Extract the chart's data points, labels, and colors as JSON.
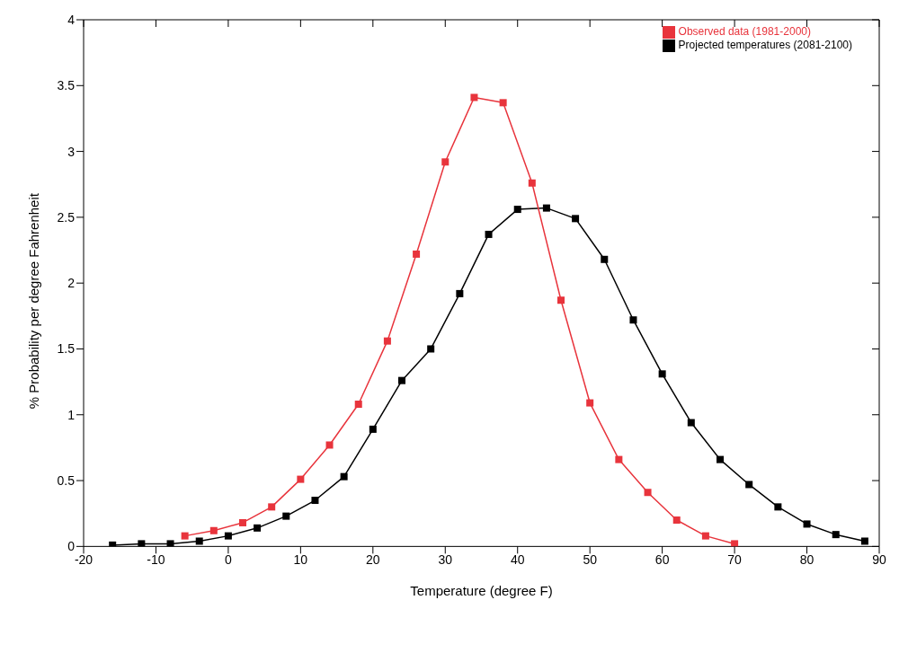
{
  "chart_data": {
    "type": "line",
    "xlabel": "Temperature (degree F)",
    "ylabel": "% Probability per degree Fahrenheit",
    "xlim": [
      -20,
      90
    ],
    "xticks": [
      -20,
      -10,
      0,
      10,
      20,
      30,
      40,
      50,
      60,
      70,
      80,
      90
    ],
    "ylim": [
      0,
      4
    ],
    "yticks": [
      0,
      0.5,
      1,
      1.5,
      2,
      2.5,
      3,
      3.5,
      4
    ],
    "grid": false,
    "legend": "top right",
    "marker": "square",
    "line_style": "solid",
    "series": [
      {
        "name": "Projected temperatures (2081-2100)",
        "color": "#000000",
        "x": [
          -16,
          -12,
          -8,
          -4,
          0,
          4,
          8,
          12,
          16,
          20,
          24,
          28,
          32,
          36,
          40,
          44,
          48,
          52,
          56,
          60,
          64,
          68,
          72,
          76,
          80,
          84,
          88
        ],
        "values": [
          0.01,
          0.02,
          0.02,
          0.04,
          0.08,
          0.14,
          0.23,
          0.35,
          0.53,
          0.89,
          1.26,
          1.5,
          1.92,
          2.37,
          2.56,
          2.57,
          2.49,
          2.18,
          1.72,
          1.31,
          0.94,
          0.66,
          0.47,
          0.3,
          0.17,
          0.09,
          0.04
        ]
      },
      {
        "name": "Observed data (1981-2000)",
        "color": "#e8343c",
        "x": [
          -6,
          -2,
          2,
          6,
          10,
          14,
          18,
          22,
          26,
          30,
          34,
          38,
          42,
          46,
          50,
          54,
          58,
          62,
          66,
          70
        ],
        "values": [
          0.08,
          0.12,
          0.18,
          0.3,
          0.51,
          0.77,
          1.08,
          1.56,
          2.22,
          2.92,
          3.41,
          3.37,
          2.76,
          1.87,
          1.09,
          0.66,
          0.41,
          0.2,
          0.08,
          0.02
        ]
      }
    ]
  }
}
